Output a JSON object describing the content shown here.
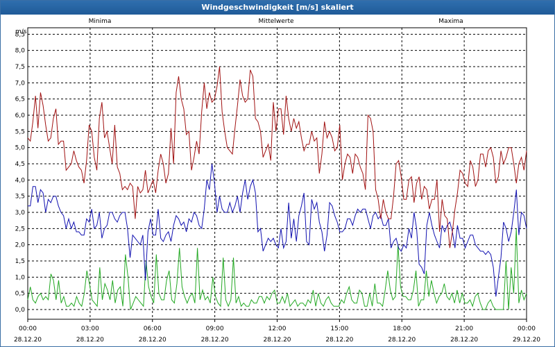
{
  "window": {
    "title": "Windgeschwindigkeit [m/s] skaliert"
  },
  "colors": {
    "min": "#22a822",
    "avg": "#1010b0",
    "max": "#a01010",
    "grid": "#000000"
  },
  "chart_data": {
    "type": "line",
    "title": "Windgeschwindigkeit [m/s] skaliert",
    "ylabel": "m/s",
    "xlabel": "",
    "ylim": [
      -0.3,
      8.7
    ],
    "y_ticks": [
      "8,5",
      "8,0",
      "7,5",
      "7,0",
      "6,5",
      "6,0",
      "5,5",
      "5,0",
      "4,5",
      "4,0",
      "3,5",
      "3,0",
      "2,5",
      "2,0",
      "1,5",
      "1,0",
      "0,5",
      "0,0"
    ],
    "y_tick_values": [
      8.5,
      8.0,
      7.5,
      7.0,
      6.5,
      6.0,
      5.5,
      5.0,
      4.5,
      4.0,
      3.5,
      3.0,
      2.5,
      2.0,
      1.5,
      1.0,
      0.5,
      0.0
    ],
    "x_ticks": [
      {
        "time": "00:00",
        "date": "28.12.20"
      },
      {
        "time": "03:00",
        "date": "28.12.20"
      },
      {
        "time": "06:00",
        "date": "28.12.20"
      },
      {
        "time": "09:00",
        "date": "28.12.20"
      },
      {
        "time": "12:00",
        "date": "28.12.20"
      },
      {
        "time": "15:00",
        "date": "28.12.20"
      },
      {
        "time": "18:00",
        "date": "28.12.20"
      },
      {
        "time": "21:00",
        "date": "28.12.20"
      },
      {
        "time": "00:00",
        "date": "29.12.20"
      }
    ],
    "grid": true,
    "legend_position": "top",
    "series": [
      {
        "name": "Minima",
        "color_key": "min",
        "values": [
          0.3,
          0.7,
          0.3,
          0.2,
          0.4,
          0.5,
          0.3,
          0.4,
          0.3,
          1.1,
          0.9,
          0.3,
          0.9,
          0.2,
          0.4,
          0.1,
          0.1,
          0.2,
          0.1,
          0.4,
          0.2,
          0.1,
          0.5,
          1.2,
          0.8,
          0.3,
          0.2,
          0.1,
          1.3,
          0.3,
          0.8,
          0.6,
          0.3,
          0.9,
          0.2,
          0.6,
          0.7,
          0.1,
          1.7,
          1.0,
          0.0,
          0.2,
          0.4,
          0.3,
          0.2,
          0.1,
          1.5,
          0.7,
          0.4,
          0.2,
          1.7,
          0.5,
          0.3,
          0.3,
          0.9,
          1.2,
          0.3,
          0.2,
          0.8,
          1.9,
          0.7,
          0.4,
          0.2,
          0.4,
          0.5,
          0.2,
          1.9,
          0.3,
          0.6,
          0.3,
          0.4,
          0.2,
          1.0,
          0.4,
          0.2,
          0.1,
          1.6,
          0.3,
          0.1,
          0.3,
          1.6,
          0.2,
          0.4,
          0.1,
          0.2,
          0.1,
          0.1,
          0.3,
          0.2,
          0.2,
          0.4,
          0.4,
          0.2,
          0.4,
          0.3,
          0.5,
          0.6,
          0.2,
          0.2,
          0.4,
          0.2,
          0.5,
          0.1,
          0.2,
          0.3,
          0.1,
          0.2,
          0.2,
          0.1,
          0.3,
          0.2,
          0.6,
          0.1,
          0.5,
          0.2,
          0.1,
          0.3,
          0.4,
          0.2,
          0.1,
          0.1,
          0.1,
          0.3,
          0.2,
          0.5,
          0.7,
          0.3,
          0.2,
          0.2,
          0.6,
          0.5,
          0.1,
          0.1,
          0.5,
          0.1,
          0.8,
          0.2,
          0.2,
          0.1,
          0.6,
          1.2,
          0.6,
          0.3,
          0.4,
          2.0,
          0.7,
          0.4,
          0.4,
          0.3,
          0.3,
          0.6,
          1.2,
          0.1,
          0.3,
          0.3,
          1.2,
          0.4,
          0.9,
          0.5,
          0.2,
          0.4,
          0.5,
          0.8,
          0.4,
          0.3,
          0.5,
          0.2,
          0.6,
          0.2,
          0.5,
          0.2,
          0.2,
          0.3,
          0.1,
          0.4,
          0.5,
          0.2,
          0.0,
          0.0,
          0.2,
          0.3,
          0.1,
          0.0,
          0.0,
          0.0,
          0.0,
          1.5,
          0.0,
          1.3,
          0.5,
          2.5,
          0.2,
          0.6,
          0.3,
          0.5
        ]
      },
      {
        "name": "Mittelwerte",
        "color_key": "avg",
        "values": [
          3.2,
          3.2,
          3.8,
          3.8,
          3.3,
          3.7,
          3.6,
          3.0,
          3.4,
          3.3,
          3.5,
          3.5,
          3.2,
          3.0,
          2.9,
          2.5,
          2.8,
          2.5,
          2.7,
          2.4,
          2.4,
          2.3,
          2.3,
          2.8,
          2.7,
          3.1,
          2.5,
          2.6,
          3.0,
          2.2,
          2.5,
          2.6,
          3.0,
          3.0,
          2.8,
          2.7,
          2.9,
          3.0,
          3.0,
          2.5,
          1.6,
          2.3,
          2.2,
          2.1,
          2.0,
          2.3,
          0.9,
          2.4,
          2.8,
          2.3,
          2.3,
          3.1,
          2.2,
          2.1,
          2.3,
          2.4,
          2.1,
          2.6,
          2.9,
          2.8,
          2.6,
          2.7,
          2.4,
          2.8,
          2.7,
          3.0,
          2.9,
          2.6,
          2.5,
          3.1,
          4.0,
          3.7,
          4.5,
          3.9,
          3.0,
          3.5,
          3.1,
          3.0,
          3.0,
          3.3,
          3.0,
          3.2,
          3.5,
          3.0,
          3.6,
          4.0,
          3.4,
          3.8,
          4.0,
          3.6,
          2.4,
          2.5,
          1.8,
          2.0,
          2.2,
          2.1,
          2.2,
          2.0,
          1.9,
          2.5,
          1.9,
          2.1,
          3.3,
          2.2,
          2.8,
          2.1,
          2.9,
          3.2,
          3.6,
          2.1,
          2.0,
          3.4,
          3.1,
          3.3,
          2.7,
          2.4,
          1.8,
          2.3,
          3.3,
          3.2,
          2.9,
          2.7,
          2.4,
          2.4,
          2.5,
          2.8,
          2.8,
          2.6,
          2.9,
          3.1,
          3.0,
          3.1,
          3.1,
          2.8,
          2.5,
          2.9,
          3.0,
          2.8,
          2.9,
          2.6,
          2.6,
          2.8,
          1.9,
          2.1,
          2.2,
          1.9,
          1.8,
          2.0,
          1.9,
          2.5,
          2.2,
          3.0,
          2.5,
          1.4,
          1.3,
          1.1,
          2.6,
          3.0,
          2.6,
          2.3,
          2.1,
          1.9,
          2.6,
          2.4,
          2.6,
          2.7,
          2.4,
          1.9,
          2.6,
          2.2,
          2.2,
          1.9,
          2.1,
          2.3,
          2.3,
          2.0,
          1.9,
          1.8,
          1.8,
          1.7,
          1.8,
          1.7,
          1.3,
          0.4,
          1.0,
          1.6,
          2.7,
          2.5,
          2.1,
          2.4,
          3.0,
          3.7,
          2.3,
          3.0,
          2.9,
          2.5
        ]
      },
      {
        "name": "Maxima",
        "color_key": "max",
        "values": [
          5.3,
          5.2,
          5.8,
          6.6,
          5.6,
          6.7,
          6.3,
          5.7,
          5.2,
          5.3,
          5.9,
          6.2,
          5.1,
          5.2,
          5.2,
          4.3,
          4.4,
          4.5,
          4.9,
          4.6,
          4.4,
          4.3,
          3.9,
          4.6,
          5.7,
          5.5,
          4.7,
          4.3,
          5.9,
          6.4,
          5.3,
          5.5,
          5.0,
          4.5,
          5.7,
          4.4,
          4.2,
          3.7,
          3.8,
          3.7,
          3.9,
          3.8,
          2.8,
          3.8,
          3.6,
          3.7,
          4.3,
          3.6,
          3.8,
          4.0,
          3.6,
          4.3,
          4.8,
          4.5,
          3.9,
          4.2,
          5.6,
          4.5,
          6.7,
          7.2,
          6.5,
          6.2,
          5.4,
          5.5,
          4.3,
          4.7,
          5.2,
          4.8,
          6.1,
          7.0,
          6.2,
          6.7,
          6.4,
          6.5,
          6.9,
          7.5,
          6.1,
          5.5,
          5.0,
          4.9,
          4.8,
          5.6,
          6.3,
          7.1,
          6.6,
          6.4,
          6.5,
          7.4,
          7.2,
          5.9,
          5.8,
          5.5,
          4.7,
          4.9,
          5.1,
          4.6,
          6.4,
          5.5,
          6.2,
          6.2,
          5.4,
          6.6,
          5.9,
          5.5,
          5.9,
          5.6,
          5.8,
          5.3,
          4.9,
          5.1,
          5.1,
          5.5,
          5.2,
          5.3,
          4.2,
          4.8,
          5.8,
          5.3,
          5.5,
          5.3,
          4.9,
          5.0,
          5.7,
          4.0,
          4.5,
          4.8,
          4.7,
          4.2,
          4.8,
          4.7,
          4.4,
          4.2,
          3.7,
          6.0,
          5.9,
          5.5,
          3.7,
          3.4,
          2.8,
          3.4,
          3.0,
          2.8,
          2.8,
          3.5,
          4.5,
          4.6,
          4.1,
          3.4,
          3.4,
          4.0,
          4.1,
          3.3,
          3.9,
          4.1,
          3.4,
          3.8,
          3.7,
          3.1,
          3.4,
          3.4,
          4.0,
          2.4,
          3.4,
          2.9,
          2.8,
          1.9,
          2.4,
          3.1,
          3.6,
          4.3,
          4.2,
          3.9,
          3.8,
          4.6,
          4.4,
          3.8,
          4.0,
          4.8,
          4.8,
          4.4,
          4.9,
          5.0,
          4.7,
          3.9,
          4.1,
          4.9,
          4.5,
          4.7,
          5.0,
          5.0,
          4.5,
          3.9,
          4.5,
          4.7,
          4.3,
          4.9
        ]
      }
    ]
  }
}
